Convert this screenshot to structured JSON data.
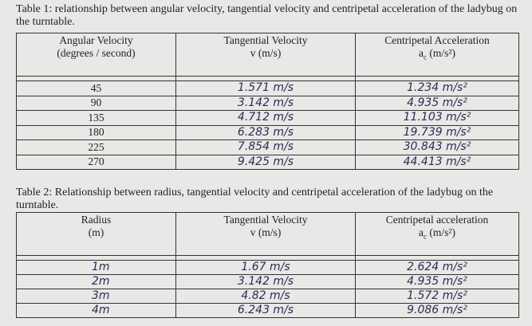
{
  "table1": {
    "caption": "Table 1:  relationship between angular velocity, tangential velocity and centripetal acceleration of the ladybug on the turntable.",
    "headers": [
      {
        "line1": "Angular Velocity",
        "line2": "(degrees / second)"
      },
      {
        "line1": "Tangential Velocity",
        "line2": "v (m/s)"
      },
      {
        "line1": "Centripetal Acceleration",
        "symbol": "a",
        "sub": "c",
        "unit": "(m/s²)"
      }
    ],
    "rows": [
      [
        "45",
        "1.571 m/s",
        "1.234 m/s²"
      ],
      [
        "90",
        "3.142 m/s",
        "4.935 m/s²"
      ],
      [
        "135",
        "4.712 m/s",
        "11.103 m/s²"
      ],
      [
        "180",
        "6.283 m/s",
        "19.739 m/s²"
      ],
      [
        "225",
        "7.854 m/s",
        "30.843 m/s²"
      ],
      [
        "270",
        "9.425 m/s",
        "44.413 m/s²"
      ]
    ]
  },
  "table2": {
    "caption": "Table 2: Relationship between radius, tangential velocity and centripetal acceleration of the ladybug on the turntable.",
    "headers": [
      {
        "line1": "Radius",
        "line2": "(m)"
      },
      {
        "line1": "Tangential Velocity",
        "line2": "v (m/s)"
      },
      {
        "line1": "Centripetal acceleration",
        "symbol": "a",
        "sub": "c",
        "unit": "(m/s²)"
      }
    ],
    "rows": [
      [
        "1m",
        "1.67 m/s",
        "2.624 m/s²"
      ],
      [
        "2m",
        "3.142 m/s",
        "4.935 m/s²"
      ],
      [
        "3m",
        "4.82 m/s",
        "1.572 m/s²"
      ],
      [
        "4m",
        "6.243 m/s",
        "9.086 m/s²"
      ]
    ]
  }
}
